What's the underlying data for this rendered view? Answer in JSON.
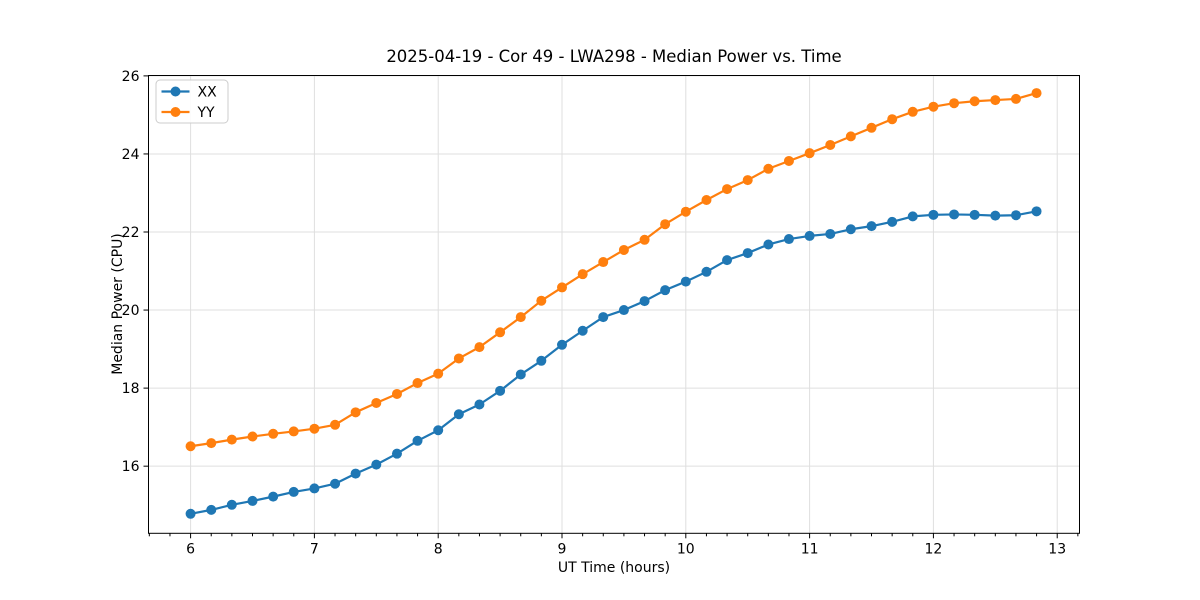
{
  "chart_data": {
    "type": "line",
    "title": "2025-04-19 - Cor 49 - LWA298 - Median Power vs. Time",
    "xlabel": "UT Time (hours)",
    "ylabel": "Median Power (CPU)",
    "xlim": [
      5.66,
      13.18
    ],
    "ylim": [
      14.28,
      26.01
    ],
    "xticks": [
      6,
      7,
      8,
      9,
      10,
      11,
      12,
      13
    ],
    "yticks": [
      16,
      18,
      20,
      22,
      24,
      26
    ],
    "x_minor_divisions_per_unit": 6,
    "grid": "major",
    "legend_position": "upper-left",
    "x": [
      6.0,
      6.167,
      6.333,
      6.5,
      6.667,
      6.833,
      7.0,
      7.167,
      7.333,
      7.5,
      7.667,
      7.833,
      8.0,
      8.167,
      8.333,
      8.5,
      8.667,
      8.833,
      9.0,
      9.167,
      9.333,
      9.5,
      9.667,
      9.833,
      10.0,
      10.167,
      10.333,
      10.5,
      10.667,
      10.833,
      11.0,
      11.167,
      11.333,
      11.5,
      11.667,
      11.833,
      12.0,
      12.167,
      12.333,
      12.5,
      12.667,
      12.833
    ],
    "series": [
      {
        "name": "XX",
        "color": "#1f77b4",
        "values": [
          14.78,
          14.88,
          15.01,
          15.11,
          15.22,
          15.34,
          15.43,
          15.55,
          15.81,
          16.04,
          16.32,
          16.65,
          16.92,
          17.33,
          17.58,
          17.93,
          18.35,
          18.7,
          19.11,
          19.47,
          19.82,
          20.0,
          20.23,
          20.51,
          20.73,
          20.98,
          21.28,
          21.46,
          21.68,
          21.82,
          21.9,
          21.95,
          22.07,
          22.15,
          22.26,
          22.4,
          22.44,
          22.45,
          22.44,
          22.42,
          22.43,
          22.53
        ]
      },
      {
        "name": "YY",
        "color": "#ff7f0e",
        "values": [
          16.51,
          16.59,
          16.68,
          16.76,
          16.83,
          16.89,
          16.96,
          17.06,
          17.38,
          17.62,
          17.85,
          18.13,
          18.37,
          18.76,
          19.05,
          19.43,
          19.82,
          20.24,
          20.58,
          20.92,
          21.23,
          21.54,
          21.8,
          22.2,
          22.52,
          22.82,
          23.1,
          23.33,
          23.62,
          23.82,
          24.02,
          24.23,
          24.45,
          24.67,
          24.89,
          25.08,
          25.21,
          25.3,
          25.35,
          25.38,
          25.41,
          25.56
        ]
      }
    ]
  },
  "colors": {
    "background": "#ffffff",
    "grid": "#dfdfdf",
    "spine": "#000000",
    "text": "#000000",
    "legend_border": "#cccccc",
    "legend_background": "#ffffff"
  }
}
